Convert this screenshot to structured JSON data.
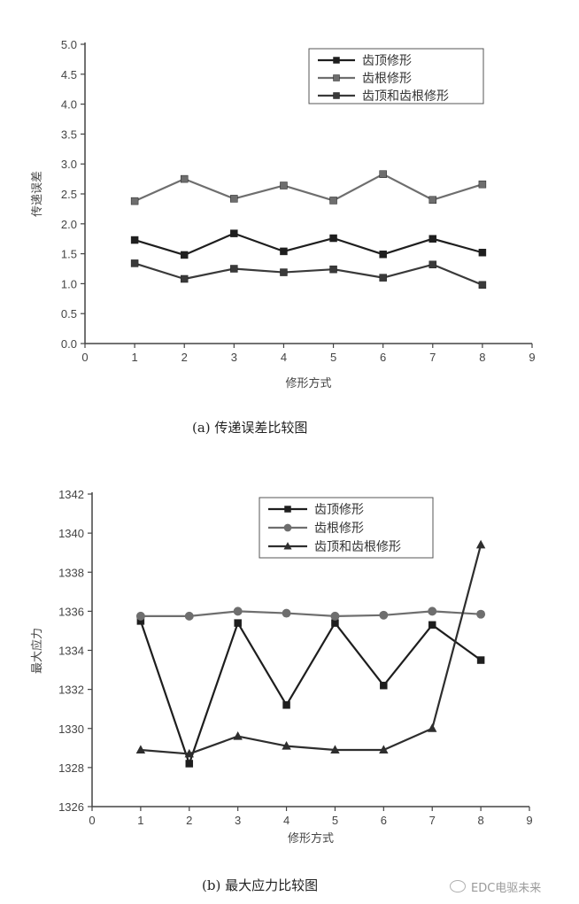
{
  "chart_data": [
    {
      "id": "a",
      "type": "line",
      "caption": "(a) 传递误差比较图",
      "title": "",
      "xlabel": "修形方式",
      "ylabel": "传递误差",
      "xlim": [
        0,
        9
      ],
      "ylim": [
        0,
        5.0
      ],
      "xticks": [
        "0",
        "1",
        "2",
        "3",
        "4",
        "5",
        "6",
        "7",
        "8",
        "9"
      ],
      "yticks": [
        "0.0",
        "0.5",
        "1.0",
        "1.5",
        "2.0",
        "2.5",
        "3.0",
        "3.5",
        "4.0",
        "4.5",
        "5.0"
      ],
      "grid": false,
      "legend_position": "top-right",
      "x": [
        1,
        2,
        3,
        4,
        5,
        6,
        7,
        8
      ],
      "series": [
        {
          "name": "齿顶修形",
          "marker": "square",
          "color": "#1e1e1e",
          "values": [
            1.73,
            1.48,
            1.84,
            1.54,
            1.76,
            1.49,
            1.75,
            1.52
          ]
        },
        {
          "name": "齿根修形",
          "marker": "square",
          "color": "#6e6e6e",
          "values": [
            2.38,
            2.75,
            2.42,
            2.64,
            2.39,
            2.83,
            2.4,
            2.66
          ]
        },
        {
          "name": "齿顶和齿根修形",
          "marker": "square",
          "color": "#3a3a3a",
          "values": [
            1.34,
            1.08,
            1.25,
            1.19,
            1.24,
            1.1,
            1.32,
            0.98
          ]
        }
      ]
    },
    {
      "id": "b",
      "type": "line",
      "caption": "(b) 最大应力比较图",
      "title": "",
      "xlabel": "修形方式",
      "ylabel": "最大应力",
      "xlim": [
        0,
        9
      ],
      "ylim": [
        1326,
        1342
      ],
      "xticks": [
        "0",
        "1",
        "2",
        "3",
        "4",
        "5",
        "6",
        "7",
        "8",
        "9"
      ],
      "yticks": [
        "1326",
        "1328",
        "1330",
        "1332",
        "1334",
        "1336",
        "1338",
        "1340",
        "1342"
      ],
      "grid": false,
      "legend_position": "top-right",
      "x": [
        1,
        2,
        3,
        4,
        5,
        6,
        7,
        8
      ],
      "series": [
        {
          "name": "齿顶修形",
          "marker": "square",
          "color": "#1e1e1e",
          "values": [
            1335.5,
            1328.2,
            1335.4,
            1331.2,
            1335.4,
            1332.2,
            1335.3,
            1333.5
          ]
        },
        {
          "name": "齿根修形",
          "marker": "circle",
          "color": "#6e6e6e",
          "values": [
            1335.75,
            1335.75,
            1336.0,
            1335.9,
            1335.75,
            1335.8,
            1336.0,
            1335.85
          ]
        },
        {
          "name": "齿顶和齿根修形",
          "marker": "triangle",
          "color": "#2e2e2e",
          "values": [
            1328.9,
            1328.7,
            1329.6,
            1329.1,
            1328.9,
            1328.9,
            1330.0,
            1339.4
          ]
        }
      ]
    }
  ],
  "watermark": {
    "icon": "wechat-icon",
    "text": "EDC电驱未来"
  }
}
